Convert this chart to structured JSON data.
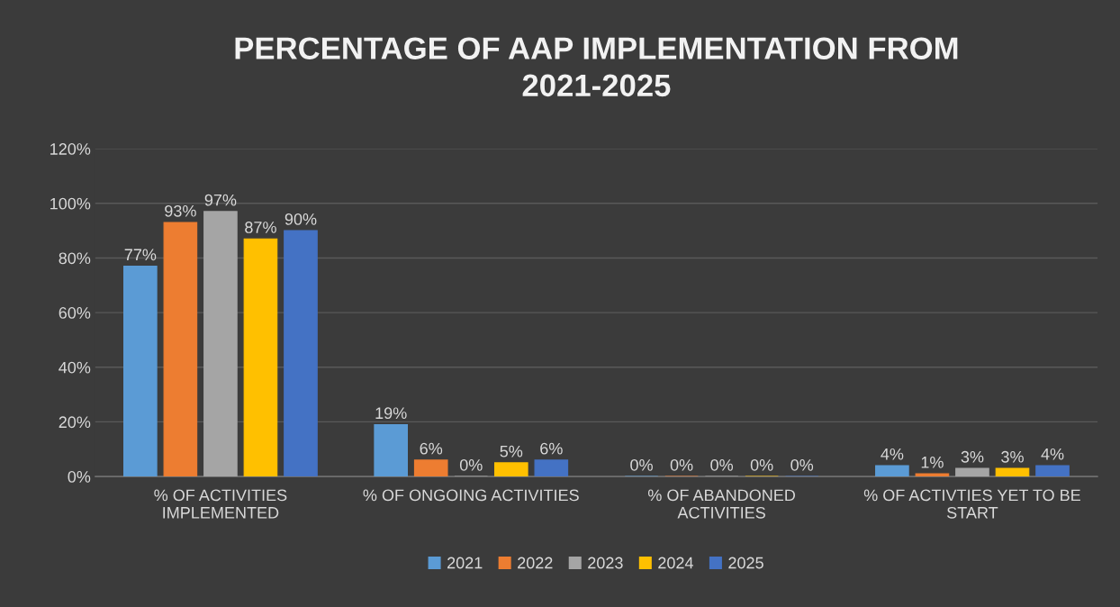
{
  "chart_data": {
    "type": "bar",
    "title": "PERCENTAGE OF AAP IMPLEMENTATION FROM\n2021-2025",
    "categories": [
      "% OF ACTIVITIES\nIMPLEMENTED",
      "% OF ONGOING ACTIVITIES",
      "% OF ABANDONED\nACTIVITIES",
      "% OF ACTIVTIES YET TO BE\nSTART"
    ],
    "series": [
      {
        "name": "2021",
        "color": "#5b9bd5",
        "values": [
          77,
          19,
          0,
          4
        ],
        "value_labels": [
          "77%",
          "19%",
          "0%",
          "4%"
        ]
      },
      {
        "name": "2022",
        "color": "#ed7d31",
        "values": [
          93,
          6,
          0,
          1
        ],
        "value_labels": [
          "93%",
          "6%",
          "0%",
          "1%"
        ]
      },
      {
        "name": "2023",
        "color": "#a5a5a5",
        "values": [
          97,
          0,
          0,
          3
        ],
        "value_labels": [
          "97%",
          "0%",
          "0%",
          "3%"
        ]
      },
      {
        "name": "2024",
        "color": "#ffc000",
        "values": [
          87,
          5,
          0,
          3
        ],
        "value_labels": [
          "87%",
          "5%",
          "0%",
          "3%"
        ]
      },
      {
        "name": "2025",
        "color": "#4472c4",
        "values": [
          90,
          6,
          0,
          4
        ],
        "value_labels": [
          "90%",
          "6%",
          "0%",
          "4%"
        ]
      }
    ],
    "ylim": [
      0,
      120
    ],
    "yticks": [
      {
        "value": 0,
        "label": "0%"
      },
      {
        "value": 20,
        "label": "20%"
      },
      {
        "value": 40,
        "label": "40%"
      },
      {
        "value": 60,
        "label": "60%"
      },
      {
        "value": 80,
        "label": "80%"
      },
      {
        "value": 100,
        "label": "100%"
      },
      {
        "value": 120,
        "label": "120%"
      }
    ],
    "grid": "y",
    "legend": "bottom"
  }
}
